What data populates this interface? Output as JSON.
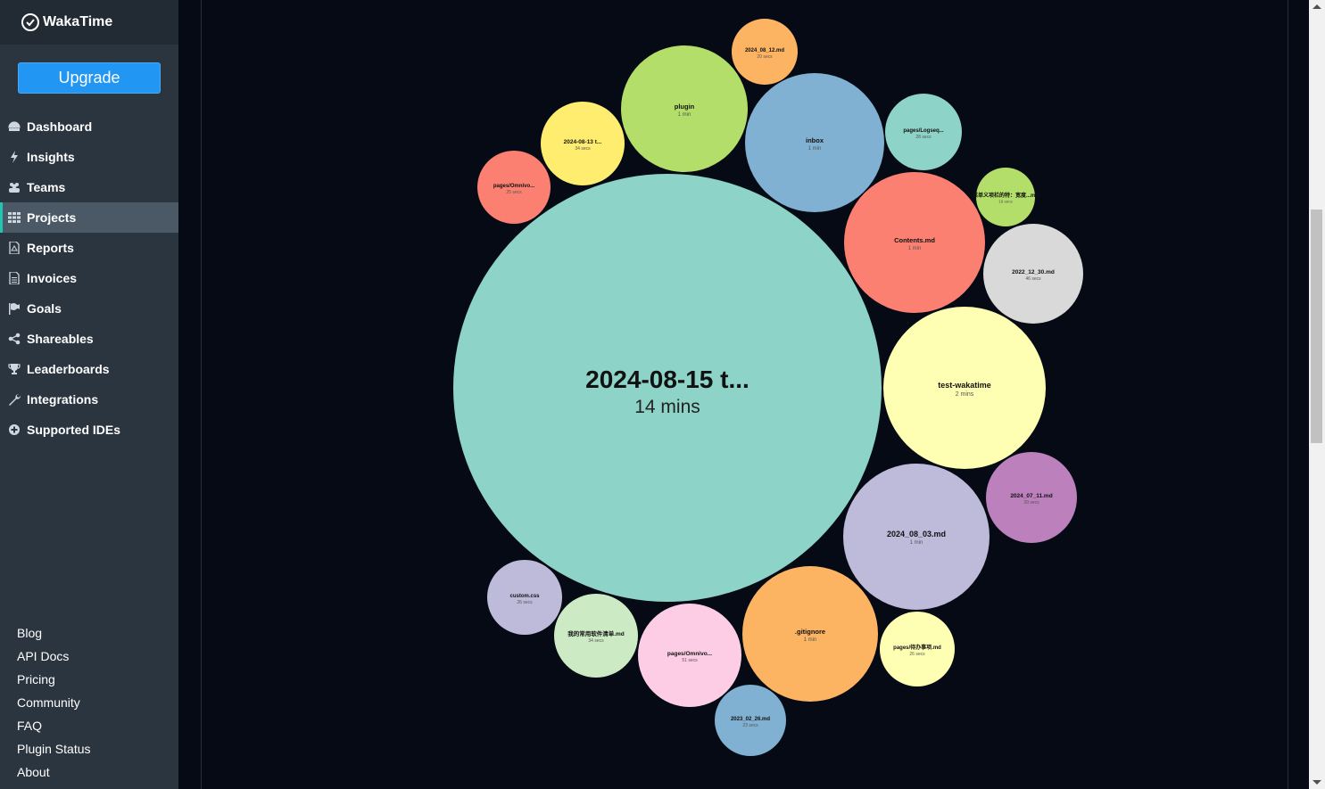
{
  "brand": {
    "name": "WakaTime"
  },
  "upgrade_label": "Upgrade",
  "nav": [
    {
      "label": "Dashboard",
      "icon": "dashboard-icon"
    },
    {
      "label": "Insights",
      "icon": "bolt-icon"
    },
    {
      "label": "Teams",
      "icon": "users-icon"
    },
    {
      "label": "Projects",
      "icon": "grid-icon",
      "active": true
    },
    {
      "label": "Reports",
      "icon": "pdf-icon"
    },
    {
      "label": "Invoices",
      "icon": "invoice-icon"
    },
    {
      "label": "Goals",
      "icon": "flag-icon"
    },
    {
      "label": "Shareables",
      "icon": "share-icon"
    },
    {
      "label": "Leaderboards",
      "icon": "trophy-icon"
    },
    {
      "label": "Integrations",
      "icon": "wrench-icon"
    },
    {
      "label": "Supported IDEs",
      "icon": "plus-circle-icon"
    }
  ],
  "footer_links": [
    "Blog",
    "API Docs",
    "Pricing",
    "Community",
    "FAQ",
    "Plugin Status",
    "About"
  ],
  "bubbles": [
    {
      "label": "2024-08-15 t...",
      "time": "14 mins",
      "color": "#8dd3c7"
    },
    {
      "label": "test-wakatime",
      "time": "2 mins",
      "color": "#ffffb3"
    },
    {
      "label": "inbox",
      "time": "1 min",
      "color": "#80b1d3"
    },
    {
      "label": "2024_08_03.md",
      "time": "1 min",
      "color": "#bebada"
    },
    {
      "label": "Contents.md",
      "time": "1 min",
      "color": "#fb8072"
    },
    {
      "label": ".gitignore",
      "time": "1 min",
      "color": "#fdb462"
    },
    {
      "label": "plugin",
      "time": "1 min",
      "color": "#b3de69"
    },
    {
      "label": "pages/Omnivo...",
      "time": "51 secs",
      "color": "#fccde5"
    },
    {
      "label": "2022_12_30.md",
      "time": "46 secs",
      "color": "#d9d9d9"
    },
    {
      "label": "2024_07_11.md",
      "time": "39 secs",
      "color": "#bc80bd"
    },
    {
      "label": "2024-08-13 t...",
      "time": "34 secs",
      "color": "#ffed6f"
    },
    {
      "label": "我的常用软件清单.md",
      "time": "34 secs",
      "color": "#ccebc5"
    },
    {
      "label": "pages/Logseq...",
      "time": "28 secs",
      "color": "#8dd3c7"
    },
    {
      "label": "pages/待办事项.md",
      "time": "26 secs",
      "color": "#ffffb3"
    },
    {
      "label": "custom.css",
      "time": "26 secs",
      "color": "#bebada"
    },
    {
      "label": "pages/Omnivo...",
      "time": "25 secs",
      "color": "#fb8072"
    },
    {
      "label": "2023_02_26.md",
      "time": "23 secs",
      "color": "#80b1d3"
    },
    {
      "label": "2024_08_12.md",
      "time": "20 secs",
      "color": "#fdb462"
    },
    {
      "label": "菜单义项栏的特：宽度...md",
      "time": "16 secs",
      "color": "#b3de69"
    }
  ]
}
